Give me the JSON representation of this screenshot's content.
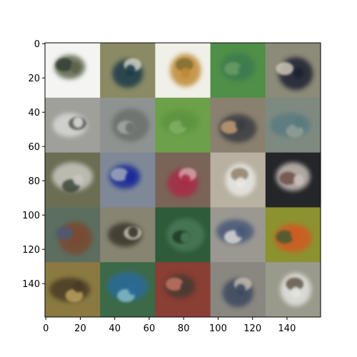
{
  "figure": {
    "background": "#ffffff",
    "description_type": "image-grid",
    "grid": {
      "rows": 5,
      "cols": 5,
      "tiles": [
        {
          "row": 0,
          "col": 0,
          "bg": "#f4f4f2",
          "fg": "#5c6448",
          "accent": "#2f3a30"
        },
        {
          "row": 0,
          "col": 1,
          "bg": "#8a8a64",
          "fg": "#1f3a48",
          "accent": "#d8d8c8"
        },
        {
          "row": 0,
          "col": 2,
          "bg": "#f0efe8",
          "fg": "#c08a36",
          "accent": "#7a6a30"
        },
        {
          "row": 0,
          "col": 3,
          "bg": "#4f8f48",
          "fg": "#3c7c50",
          "accent": "#6c9c66"
        },
        {
          "row": 0,
          "col": 4,
          "bg": "#8c8a78",
          "fg": "#1e2230",
          "accent": "#d8d0c0"
        },
        {
          "row": 1,
          "col": 0,
          "bg": "#a0a09a",
          "fg": "#d8d8d4",
          "accent": "#4a4c48"
        },
        {
          "row": 1,
          "col": 1,
          "bg": "#8e9290",
          "fg": "#6c706c",
          "accent": "#a8aca8"
        },
        {
          "row": 1,
          "col": 2,
          "bg": "#6ca04a",
          "fg": "#5c9440",
          "accent": "#86b066"
        },
        {
          "row": 1,
          "col": 3,
          "bg": "#8a8070",
          "fg": "#3a3c42",
          "accent": "#c8a078"
        },
        {
          "row": 1,
          "col": 4,
          "bg": "#7e8a80",
          "fg": "#5a7a80",
          "accent": "#94a098"
        },
        {
          "row": 2,
          "col": 0,
          "bg": "#6c6e54",
          "fg": "#c8c8c0",
          "accent": "#344030"
        },
        {
          "row": 2,
          "col": 1,
          "bg": "#7e8896",
          "fg": "#1c2a9a",
          "accent": "#a8b0bc"
        },
        {
          "row": 2,
          "col": 2,
          "bg": "#7a6458",
          "fg": "#a82a44",
          "accent": "#d8a8b0"
        },
        {
          "row": 2,
          "col": 3,
          "bg": "#b8b0a0",
          "fg": "#e8e8e4",
          "accent": "#8c7c60"
        },
        {
          "row": 2,
          "col": 4,
          "bg": "#24262a",
          "fg": "#c8c0b8",
          "accent": "#6a4a40"
        },
        {
          "row": 3,
          "col": 0,
          "bg": "#5c6e60",
          "fg": "#7a4a30",
          "accent": "#4c5a7a"
        },
        {
          "row": 3,
          "col": 1,
          "bg": "#888472",
          "fg": "#3a342a",
          "accent": "#d0ccc0"
        },
        {
          "row": 3,
          "col": 2,
          "bg": "#2e5c3a",
          "fg": "#4a7a58",
          "accent": "#1c3624"
        },
        {
          "row": 3,
          "col": 3,
          "bg": "#9a9890",
          "fg": "#4a5878",
          "accent": "#e0e0dc"
        },
        {
          "row": 3,
          "col": 4,
          "bg": "#8c9230",
          "fg": "#d05a20",
          "accent": "#3c5a30"
        },
        {
          "row": 4,
          "col": 0,
          "bg": "#8a7a40",
          "fg": "#4a3a28",
          "accent": "#c0a860"
        },
        {
          "row": 4,
          "col": 1,
          "bg": "#3c6a48",
          "fg": "#2c6a9a",
          "accent": "#8ac0c8"
        },
        {
          "row": 4,
          "col": 2,
          "bg": "#8a3e34",
          "fg": "#4a3a30",
          "accent": "#c87868"
        },
        {
          "row": 4,
          "col": 3,
          "bg": "#8a8680",
          "fg": "#3a4a60",
          "accent": "#c8c0b0"
        },
        {
          "row": 4,
          "col": 4,
          "bg": "#9a9a8c",
          "fg": "#e4e4e0",
          "accent": "#5a5040"
        }
      ]
    },
    "x_axis": {
      "ticks": [
        {
          "value": 0,
          "label": "0"
        },
        {
          "value": 20,
          "label": "20"
        },
        {
          "value": 40,
          "label": "40"
        },
        {
          "value": 60,
          "label": "60"
        },
        {
          "value": 80,
          "label": "80"
        },
        {
          "value": 100,
          "label": "100"
        },
        {
          "value": 120,
          "label": "120"
        },
        {
          "value": 140,
          "label": "140"
        }
      ],
      "range": [
        -0.5,
        159.5
      ]
    },
    "y_axis": {
      "ticks": [
        {
          "value": 0,
          "label": "0"
        },
        {
          "value": 20,
          "label": "20"
        },
        {
          "value": 40,
          "label": "40"
        },
        {
          "value": 60,
          "label": "60"
        },
        {
          "value": 80,
          "label": "80"
        },
        {
          "value": 100,
          "label": "100"
        },
        {
          "value": 120,
          "label": "120"
        },
        {
          "value": 140,
          "label": "140"
        }
      ],
      "range": [
        -0.5,
        159.5
      ],
      "inverted": true
    }
  }
}
